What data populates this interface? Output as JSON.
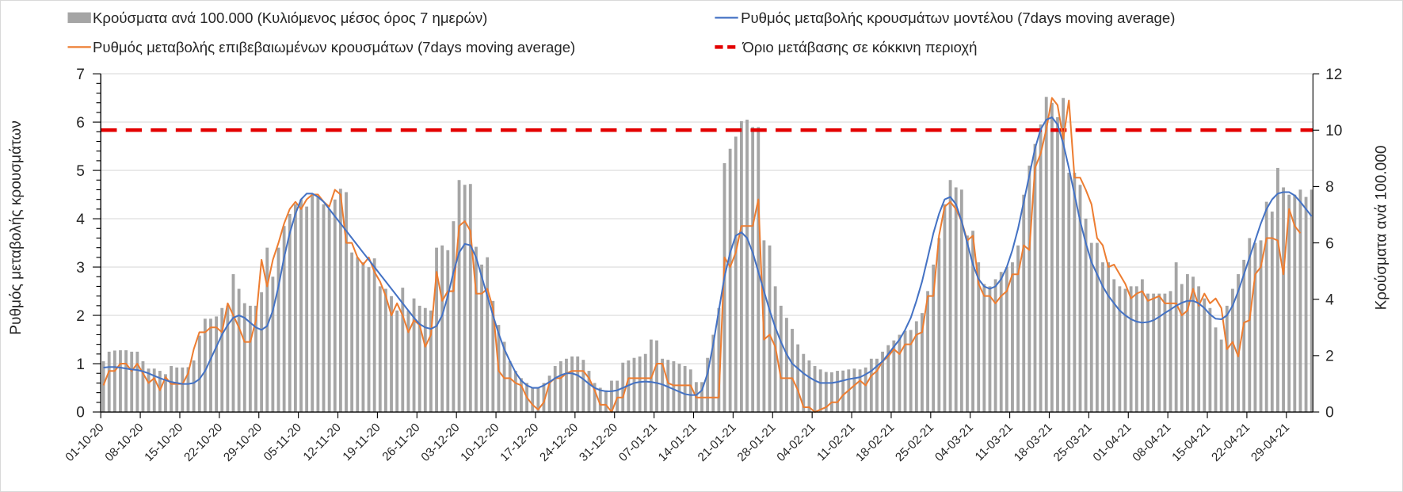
{
  "chart_data": {
    "type": "bar+line",
    "legend": {
      "bars": "Κρούσματα ανά 100.000 (Κυλιόμενος μέσος όρος 7 ημερών)",
      "model": "Ρυθμός μεταβολής κρουσμάτων μοντέλου (7days moving average)",
      "confirmed": "Ρυθμός μεταβολής επιβεβαιωμένων κρουσμάτων (7days moving average)",
      "threshold": "Όριο μετάβασης σε κόκκινη περιοχή"
    },
    "legend_placement": "top",
    "ylabel_left": "Ρυθμός μεταβολής κρουσμάτων",
    "ylabel_right": "Κρούσματα ανά 100.000",
    "ylim_left": [
      0,
      7
    ],
    "ylim_right": [
      0,
      12
    ],
    "yticks_left": [
      "0",
      "1",
      "2",
      "3",
      "4",
      "5",
      "6",
      "7"
    ],
    "yticks_right": [
      "0",
      "2",
      "4",
      "6",
      "8",
      "10",
      "12"
    ],
    "grid": true,
    "start_date": "01-10-20",
    "xtick_labels": [
      "01-10-20",
      "08-10-20",
      "15-10-20",
      "22-10-20",
      "29-10-20",
      "05-11-20",
      "12-11-20",
      "19-11-20",
      "26-11-20",
      "03-12-20",
      "10-12-20",
      "17-12-20",
      "24-12-20",
      "31-12-20",
      "07-01-21",
      "14-01-21",
      "21-01-21",
      "28-01-21",
      "04-02-21",
      "11-02-21",
      "18-02-21",
      "25-02-21",
      "04-03-21",
      "11-03-21",
      "18-03-21",
      "25-03-21",
      "01-04-21",
      "08-04-21",
      "15-04-21",
      "22-04-21",
      "29-04-21"
    ],
    "threshold_right_axis": 10,
    "colors": {
      "bars": "#a5a5a5",
      "model": "#4472c4",
      "confirmed": "#ed7d31",
      "threshold": "#e30000",
      "grid": "#d9d9d9"
    },
    "series": [
      {
        "name": "Κρούσματα ανά 100.000",
        "axis": "right",
        "kind": "bar",
        "values": [
          1.8,
          2.14,
          2.18,
          2.19,
          2.19,
          2.14,
          2.14,
          1.8,
          1.54,
          1.54,
          1.46,
          1.34,
          1.63,
          1.58,
          1.58,
          1.59,
          1.83,
          2.71,
          3.31,
          3.31,
          3.39,
          3.69,
          3.77,
          4.89,
          4.37,
          3.86,
          3.77,
          3.77,
          4.25,
          5.83,
          4.8,
          5.83,
          6.6,
          7.03,
          7.37,
          7.54,
          7.29,
          7.71,
          7.63,
          7.37,
          7.2,
          7.54,
          7.92,
          7.8,
          5.66,
          5.49,
          5.31,
          5.14,
          5.45,
          4.46,
          4.37,
          4.11,
          3.6,
          4.41,
          3.6,
          4.03,
          3.77,
          3.69,
          3.6,
          5.83,
          5.91,
          5.74,
          6.77,
          8.23,
          8.06,
          8.09,
          5.86,
          5.23,
          5.49,
          3.94,
          3.09,
          2.49,
          1.8,
          1.46,
          1.2,
          1.03,
          0.86,
          0.86,
          1.03,
          1.29,
          1.63,
          1.8,
          1.89,
          1.97,
          1.97,
          1.85,
          1.46,
          1.03,
          0.86,
          0.77,
          1.11,
          1.11,
          1.75,
          1.83,
          1.92,
          1.97,
          2.06,
          2.57,
          2.54,
          1.89,
          1.85,
          1.8,
          1.71,
          1.63,
          1.51,
          1.06,
          1.06,
          1.92,
          2.74,
          3.69,
          8.83,
          9.34,
          9.77,
          10.32,
          10.37,
          10.11,
          10.11,
          6.09,
          5.91,
          4.46,
          3.77,
          3.34,
          2.95,
          2.4,
          2.06,
          1.83,
          1.63,
          1.51,
          1.42,
          1.41,
          1.46,
          1.47,
          1.51,
          1.54,
          1.51,
          1.58,
          1.89,
          1.89,
          2.14,
          2.37,
          2.54,
          2.74,
          2.88,
          2.91,
          3.22,
          3.51,
          4.29,
          5.23,
          6.17,
          7.37,
          8.23,
          7.97,
          7.89,
          6.26,
          6.43,
          5.31,
          4.54,
          4.46,
          4.71,
          4.97,
          5.14,
          5.31,
          5.91,
          7.71,
          8.74,
          9.51,
          10.2,
          11.18,
          10.97,
          10.46,
          11.14,
          8.49,
          8.49,
          8.06,
          6.86,
          6.0,
          6.0,
          5.31,
          5.31,
          4.71,
          4.46,
          4.37,
          4.46,
          4.46,
          4.71,
          4.2,
          4.2,
          4.2,
          4.2,
          4.29,
          5.31,
          4.54,
          4.89,
          4.8,
          4.46,
          4.03,
          3.69,
          3.0,
          2.57,
          3.77,
          4.37,
          4.89,
          5.4,
          6.17,
          6.0,
          6.09,
          7.46,
          7.11,
          8.66,
          7.97,
          7.71,
          7.71,
          7.89,
          7.63,
          7.89
        ]
      },
      {
        "name": "Ρυθμός μεταβολής κρουσμάτων μοντέλου",
        "axis": "left",
        "kind": "line",
        "values": [
          0.92,
          0.93,
          0.93,
          0.92,
          0.9,
          0.88,
          0.87,
          0.84,
          0.8,
          0.75,
          0.7,
          0.66,
          0.62,
          0.6,
          0.58,
          0.58,
          0.6,
          0.68,
          0.85,
          1.1,
          1.35,
          1.6,
          1.8,
          1.95,
          2.0,
          1.95,
          1.85,
          1.75,
          1.7,
          1.78,
          2.1,
          2.6,
          3.2,
          3.7,
          4.1,
          4.4,
          4.52,
          4.52,
          4.45,
          4.35,
          4.2,
          4.05,
          3.9,
          3.75,
          3.6,
          3.45,
          3.3,
          3.15,
          3.0,
          2.85,
          2.7,
          2.55,
          2.4,
          2.25,
          2.1,
          1.95,
          1.82,
          1.75,
          1.72,
          1.78,
          2.0,
          2.4,
          2.9,
          3.3,
          3.48,
          3.45,
          3.2,
          2.8,
          2.4,
          2.0,
          1.62,
          1.3,
          1.05,
          0.82,
          0.65,
          0.55,
          0.5,
          0.5,
          0.55,
          0.62,
          0.7,
          0.76,
          0.8,
          0.8,
          0.76,
          0.68,
          0.58,
          0.5,
          0.45,
          0.43,
          0.43,
          0.45,
          0.5,
          0.55,
          0.6,
          0.62,
          0.63,
          0.62,
          0.6,
          0.57,
          0.52,
          0.47,
          0.42,
          0.37,
          0.35,
          0.35,
          0.45,
          0.8,
          1.4,
          2.1,
          2.8,
          3.3,
          3.65,
          3.72,
          3.6,
          3.3,
          2.9,
          2.5,
          2.1,
          1.75,
          1.45,
          1.2,
          1.0,
          0.9,
          0.8,
          0.72,
          0.65,
          0.6,
          0.6,
          0.6,
          0.62,
          0.65,
          0.68,
          0.7,
          0.72,
          0.78,
          0.85,
          0.95,
          1.05,
          1.2,
          1.35,
          1.5,
          1.7,
          1.95,
          2.3,
          2.7,
          3.2,
          3.7,
          4.1,
          4.4,
          4.45,
          4.3,
          3.95,
          3.5,
          3.05,
          2.75,
          2.6,
          2.55,
          2.6,
          2.75,
          3.0,
          3.35,
          3.8,
          4.35,
          4.9,
          5.45,
          5.85,
          6.05,
          6.1,
          5.95,
          5.55,
          5.05,
          4.5,
          3.95,
          3.5,
          3.1,
          2.85,
          2.6,
          2.4,
          2.25,
          2.1,
          2.0,
          1.92,
          1.87,
          1.85,
          1.86,
          1.9,
          1.97,
          2.05,
          2.12,
          2.2,
          2.26,
          2.3,
          2.3,
          2.25,
          2.15,
          2.02,
          1.93,
          1.92,
          2.0,
          2.2,
          2.5,
          2.85,
          3.2,
          3.55,
          3.9,
          4.2,
          4.4,
          4.52,
          4.55,
          4.55,
          4.48,
          4.35,
          4.2,
          4.05
        ]
      },
      {
        "name": "Ρυθμός μεταβολής επιβεβαιωμένων κρουσμάτων",
        "axis": "left",
        "kind": "line",
        "values": [
          0.55,
          0.85,
          0.85,
          1.0,
          1.0,
          0.85,
          1.0,
          0.8,
          0.6,
          0.7,
          0.45,
          0.72,
          0.58,
          0.58,
          0.58,
          0.8,
          1.3,
          1.65,
          1.65,
          1.75,
          1.75,
          1.65,
          2.25,
          2.0,
          1.75,
          1.45,
          1.45,
          1.9,
          3.15,
          2.6,
          3.15,
          3.5,
          3.9,
          4.2,
          4.35,
          4.2,
          4.4,
          4.5,
          4.5,
          4.35,
          4.25,
          4.6,
          4.5,
          3.5,
          3.5,
          3.2,
          3.05,
          3.2,
          2.9,
          2.7,
          2.4,
          2.0,
          2.25,
          2.0,
          1.65,
          1.9,
          1.8,
          1.35,
          1.6,
          2.9,
          2.3,
          2.5,
          2.5,
          3.85,
          3.95,
          3.75,
          2.45,
          2.45,
          2.55,
          2.15,
          0.85,
          0.7,
          0.7,
          0.6,
          0.55,
          0.3,
          0.15,
          0.05,
          0.2,
          0.6,
          0.7,
          0.7,
          0.8,
          0.85,
          0.85,
          0.85,
          0.7,
          0.45,
          0.15,
          0.15,
          0.0,
          0.3,
          0.3,
          0.7,
          0.7,
          0.7,
          0.7,
          0.7,
          1.0,
          1.0,
          0.6,
          0.55,
          0.55,
          0.55,
          0.55,
          0.3,
          0.3,
          0.3,
          0.3,
          0.3,
          3.2,
          3.0,
          3.3,
          3.85,
          3.85,
          3.85,
          4.4,
          1.5,
          1.6,
          1.35,
          0.7,
          0.7,
          0.7,
          0.45,
          0.1,
          0.1,
          0.0,
          0.05,
          0.1,
          0.2,
          0.2,
          0.35,
          0.45,
          0.55,
          0.65,
          0.55,
          0.75,
          0.85,
          1.05,
          1.15,
          1.3,
          1.2,
          1.4,
          1.4,
          1.6,
          1.65,
          2.4,
          2.4,
          3.65,
          4.25,
          4.35,
          4.2,
          3.95,
          3.55,
          3.65,
          2.65,
          2.4,
          2.4,
          2.25,
          2.4,
          2.5,
          2.85,
          2.85,
          3.45,
          3.35,
          5.05,
          5.35,
          5.85,
          6.5,
          6.35,
          5.65,
          6.45,
          4.85,
          4.85,
          4.6,
          4.3,
          3.6,
          3.45,
          3.0,
          3.05,
          2.85,
          2.65,
          2.35,
          2.45,
          2.5,
          2.3,
          2.35,
          2.4,
          2.25,
          2.25,
          2.25,
          2.0,
          2.1,
          2.55,
          2.2,
          2.45,
          2.25,
          2.35,
          2.15,
          1.3,
          1.45,
          1.15,
          1.85,
          1.9,
          2.85,
          3.0,
          3.6,
          3.6,
          3.55,
          2.85,
          4.2,
          3.85,
          3.7
        ]
      }
    ]
  }
}
